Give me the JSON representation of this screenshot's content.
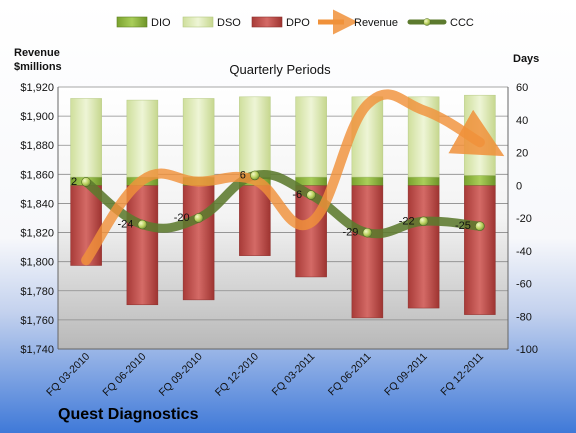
{
  "chart_data": {
    "type": "bar",
    "subtitle": "Quarterly Periods",
    "company": "Quest Diagnostics",
    "left_axis_label": [
      "Revenue",
      "$millions"
    ],
    "right_axis_label": "Days",
    "categories": [
      "FQ 03-2010",
      "FQ 06-2010",
      "FQ 09-2010",
      "FQ 12-2010",
      "FQ 03-2011",
      "FQ 06-2011",
      "FQ 09-2011",
      "FQ 12-2011"
    ],
    "left_axis": {
      "min": 1740,
      "max": 1920,
      "step": 20
    },
    "right_axis": {
      "min": -100,
      "max": 60,
      "step": 20
    },
    "left_tick_labels": [
      "$1,740",
      "$1,760",
      "$1,780",
      "$1,800",
      "$1,820",
      "$1,840",
      "$1,860",
      "$1,880",
      "$1,900",
      "$1,920"
    ],
    "right_tick_labels": [
      "-100",
      "-80",
      "-60",
      "-40",
      "-20",
      "0",
      "20",
      "40",
      "60"
    ],
    "series": [
      {
        "name": "DIO",
        "axis": "right",
        "kind": "stacked-bar",
        "values": [
          5,
          5,
          5,
          5,
          5,
          5,
          5,
          6
        ]
      },
      {
        "name": "DSO",
        "axis": "right",
        "kind": "stacked-bar",
        "values": [
          48,
          47,
          48,
          49,
          49,
          49,
          49,
          49
        ]
      },
      {
        "name": "DPO",
        "axis": "right",
        "kind": "negative-bar",
        "values": [
          -49,
          -73,
          -70,
          -43,
          -56,
          -81,
          -75,
          -79
        ]
      },
      {
        "name": "Revenue",
        "axis": "left",
        "kind": "line",
        "values": [
          1801,
          1856,
          1855,
          1856,
          1827,
          1908,
          1904,
          1882
        ]
      },
      {
        "name": "CCC",
        "axis": "right",
        "kind": "line",
        "values": [
          2,
          -24,
          -20,
          6,
          -6,
          -29,
          -22,
          -25
        ]
      }
    ],
    "ccc_labels": [
      "2",
      "-24",
      "-20",
      "6",
      "-6",
      "-29",
      "-22",
      "-25"
    ],
    "legend_position": "top",
    "gridlines": "horizontal",
    "colors": {
      "DIO": "#8DB43C",
      "DSO": "#DDEAB5",
      "DPO": "#C0504D",
      "Revenue": "#F0913A",
      "CCC": "#6E8B3D",
      "background_top": "#FFFFFF",
      "background_bottom": "#3F79D8"
    }
  }
}
